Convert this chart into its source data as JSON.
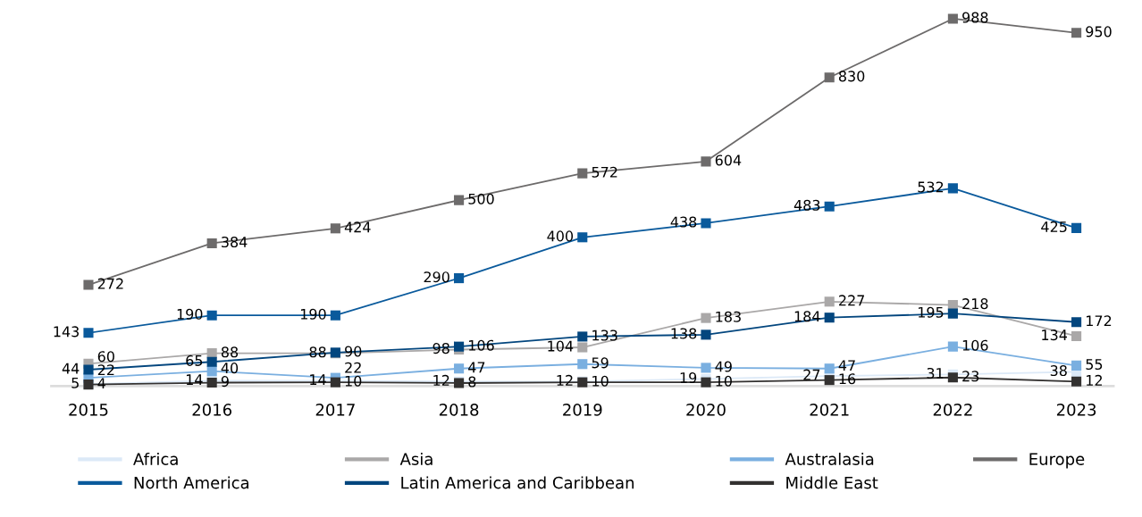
{
  "chart_data": {
    "type": "line",
    "categories": [
      "2015",
      "2016",
      "2017",
      "2018",
      "2019",
      "2020",
      "2021",
      "2022",
      "2023"
    ],
    "series": [
      {
        "name": "Africa",
        "color": "#dce9f7",
        "values": [
          5,
          14,
          14,
          12,
          12,
          19,
          27,
          31,
          38
        ]
      },
      {
        "name": "Asia",
        "color": "#aaa8a8",
        "values": [
          60,
          88,
          88,
          98,
          104,
          183,
          227,
          218,
          134
        ]
      },
      {
        "name": "Australasia",
        "color": "#7aafe0",
        "values": [
          22,
          40,
          22,
          47,
          59,
          49,
          47,
          106,
          55
        ]
      },
      {
        "name": "Europe",
        "color": "#6d6b6b",
        "values": [
          272,
          384,
          424,
          500,
          572,
          604,
          830,
          988,
          950
        ]
      },
      {
        "name": "North America",
        "color": "#0a5a9c",
        "values": [
          143,
          190,
          190,
          290,
          400,
          438,
          483,
          532,
          425
        ]
      },
      {
        "name": "Latin America and Caribbean",
        "color": "#03467e",
        "values": [
          44,
          65,
          90,
          106,
          133,
          138,
          184,
          195,
          172
        ]
      },
      {
        "name": "Middle East",
        "color": "#333130",
        "values": [
          4,
          9,
          10,
          8,
          10,
          10,
          16,
          23,
          12
        ]
      }
    ],
    "data_labels": true,
    "marker": "square",
    "line_style": "solid",
    "legend": "bottom",
    "grid": false,
    "relative": false
  }
}
